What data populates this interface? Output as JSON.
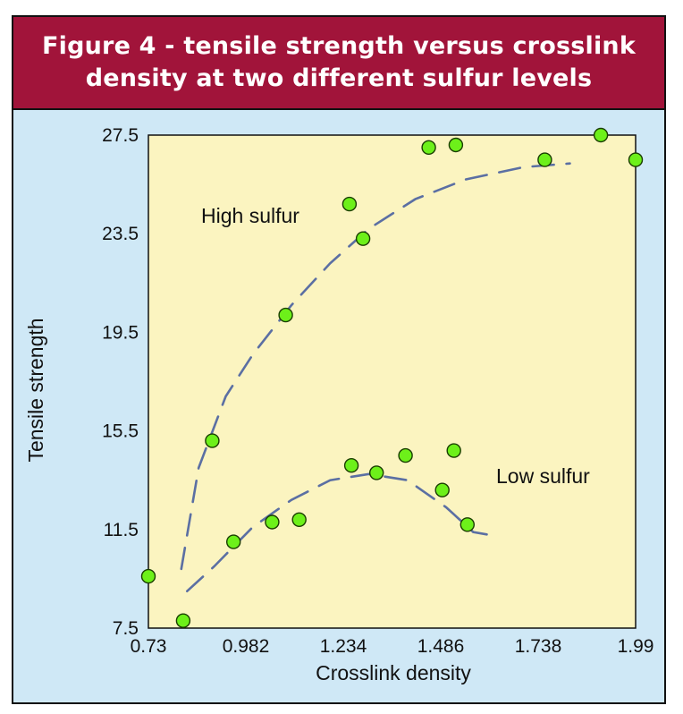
{
  "chart_data": {
    "type": "scatter",
    "title": "Figure 4 - tensile strength versus crosslink density at two different sulfur levels",
    "xlabel": "Crosslink density",
    "ylabel": "Tensile strength",
    "xlim": [
      0.73,
      1.99
    ],
    "ylim": [
      7.5,
      27.5
    ],
    "xticks": [
      "0.73",
      "0.982",
      "1.234",
      "1.486",
      "1.738",
      "1.99"
    ],
    "yticks": [
      "7.5",
      "11.5",
      "15.5",
      "19.5",
      "23.5",
      "27.5"
    ],
    "grid": false,
    "series": [
      {
        "name": "High sulfur",
        "points": [
          [
            0.73,
            9.6
          ],
          [
            0.82,
            7.8
          ],
          [
            0.895,
            15.1
          ],
          [
            1.085,
            20.2
          ],
          [
            1.25,
            24.7
          ],
          [
            1.285,
            23.3
          ],
          [
            1.455,
            27.0
          ],
          [
            1.525,
            27.1
          ],
          [
            1.755,
            26.5
          ],
          [
            1.9,
            27.5
          ],
          [
            1.99,
            26.5
          ]
        ],
        "trend": [
          [
            0.815,
            9.9
          ],
          [
            0.86,
            14.0
          ],
          [
            0.93,
            16.9
          ],
          [
            1.0,
            18.6
          ],
          [
            1.1,
            20.6
          ],
          [
            1.2,
            22.3
          ],
          [
            1.3,
            23.7
          ],
          [
            1.42,
            24.9
          ],
          [
            1.55,
            25.7
          ],
          [
            1.7,
            26.2
          ],
          [
            1.82,
            26.35
          ]
        ]
      },
      {
        "name": "Low sulfur",
        "points": [
          [
            0.95,
            11.0
          ],
          [
            1.05,
            11.8
          ],
          [
            1.12,
            11.9
          ],
          [
            1.255,
            14.1
          ],
          [
            1.32,
            13.8
          ],
          [
            1.395,
            14.5
          ],
          [
            1.49,
            13.1
          ],
          [
            1.52,
            14.7
          ],
          [
            1.555,
            11.7
          ]
        ],
        "trend": [
          [
            0.83,
            9.0
          ],
          [
            0.9,
            10.0
          ],
          [
            1.0,
            11.6
          ],
          [
            1.1,
            12.7
          ],
          [
            1.2,
            13.5
          ],
          [
            1.3,
            13.75
          ],
          [
            1.4,
            13.5
          ],
          [
            1.5,
            12.4
          ],
          [
            1.57,
            11.4
          ],
          [
            1.605,
            11.3
          ]
        ]
      }
    ],
    "annotations": [
      "High sulfur",
      "Low sulfur"
    ]
  },
  "colors": {
    "background": "#cfe8f6",
    "plot_area": "#fbf4c0",
    "title_bar": "#a1143a",
    "title_text": "#ffffff",
    "marker_fill": "#6df01a",
    "marker_edge": "#1a3d00",
    "trend_line": "#5b6fa3"
  }
}
